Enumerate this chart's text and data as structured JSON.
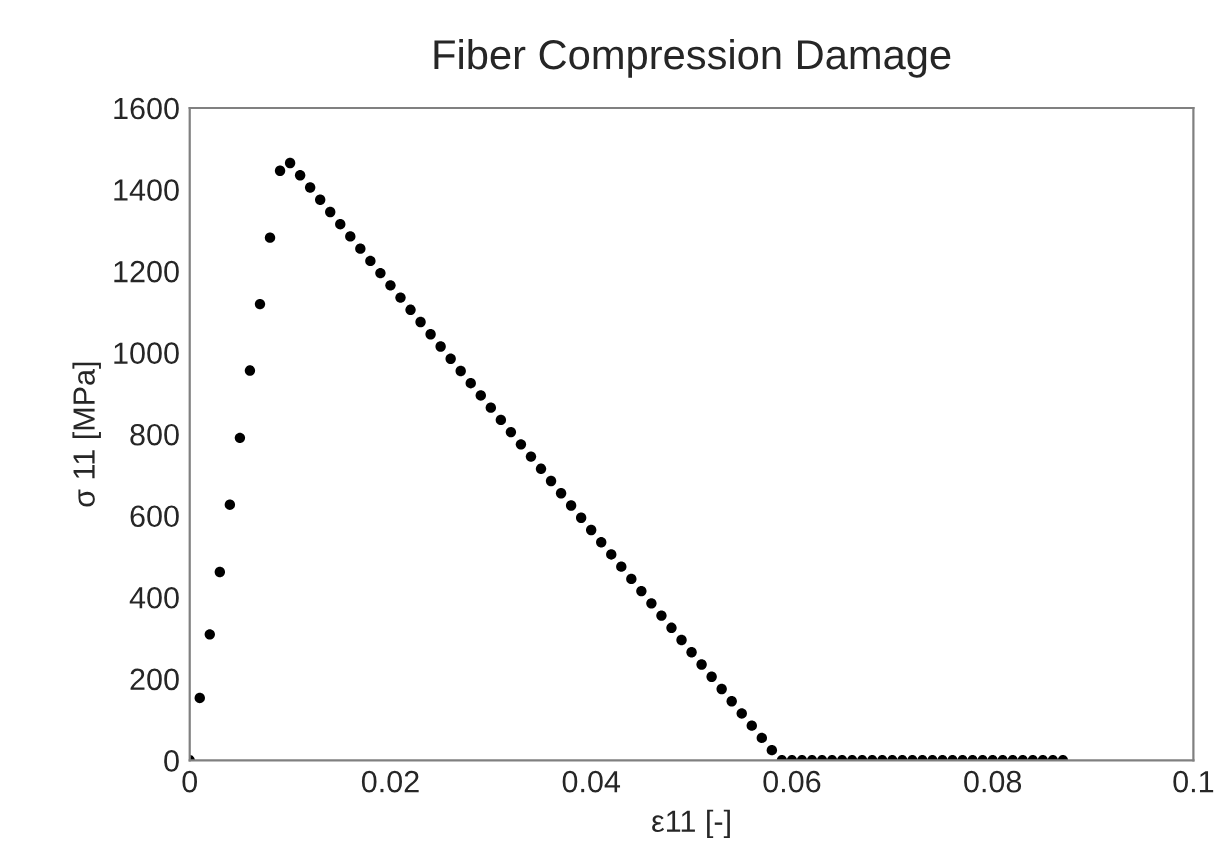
{
  "chart_data": {
    "type": "scatter",
    "title": "Fiber Compression Damage",
    "xlabel": "ε11 [-]",
    "ylabel": "σ 11 [MPa]",
    "x": [
      0,
      0.001,
      0.002,
      0.003,
      0.004,
      0.005,
      0.006,
      0.007,
      0.008,
      0.009,
      0.01,
      0.011,
      0.012,
      0.013,
      0.014,
      0.015,
      0.016,
      0.017,
      0.018,
      0.019,
      0.02,
      0.021,
      0.022,
      0.023,
      0.024,
      0.025,
      0.026,
      0.027,
      0.028,
      0.029,
      0.03,
      0.031,
      0.032,
      0.033,
      0.034,
      0.035,
      0.036,
      0.037,
      0.038,
      0.039,
      0.04,
      0.041,
      0.042,
      0.043,
      0.044,
      0.045,
      0.046,
      0.047,
      0.048,
      0.049,
      0.05,
      0.051,
      0.052,
      0.053,
      0.054,
      0.055,
      0.056,
      0.057,
      0.058,
      0.059,
      0.06,
      0.061,
      0.062,
      0.063,
      0.064,
      0.065,
      0.066,
      0.067,
      0.068,
      0.069,
      0.07,
      0.071,
      0.072,
      0.073,
      0.074,
      0.075,
      0.076,
      0.077,
      0.078,
      0.079,
      0.08,
      0.081,
      0.082,
      0.083,
      0.084,
      0.085,
      0.086,
      0.087
    ],
    "series": [
      {
        "color": "#000000",
        "values": [
          0,
          153,
          309,
          462,
          627,
          791,
          956,
          1119,
          1282,
          1446,
          1465,
          1435,
          1405,
          1375,
          1345,
          1315,
          1285,
          1255,
          1225,
          1195,
          1165,
          1135,
          1105,
          1075,
          1045,
          1015,
          985,
          955,
          925,
          895,
          865,
          835,
          805,
          775,
          745,
          715,
          685,
          655,
          625,
          595,
          565,
          535,
          505,
          475,
          445,
          415,
          385,
          355,
          325,
          295,
          265,
          235,
          205,
          175,
          145,
          115,
          85,
          55,
          25,
          0,
          0,
          0,
          0,
          0,
          0,
          0,
          0,
          0,
          0,
          0,
          0,
          0,
          0,
          0,
          0,
          0,
          0,
          0,
          0,
          0,
          0,
          0,
          0,
          0,
          0,
          0,
          0,
          0
        ]
      }
    ],
    "xlim": [
      0,
      0.1
    ],
    "xticks": [
      0,
      0.02,
      0.04,
      0.06,
      0.08,
      0.1
    ],
    "ylim": [
      0,
      1600
    ],
    "yticks": [
      0,
      200,
      400,
      600,
      800,
      1000,
      1200,
      1400,
      1600
    ],
    "grid": false,
    "legend": false,
    "marker": "circle"
  }
}
